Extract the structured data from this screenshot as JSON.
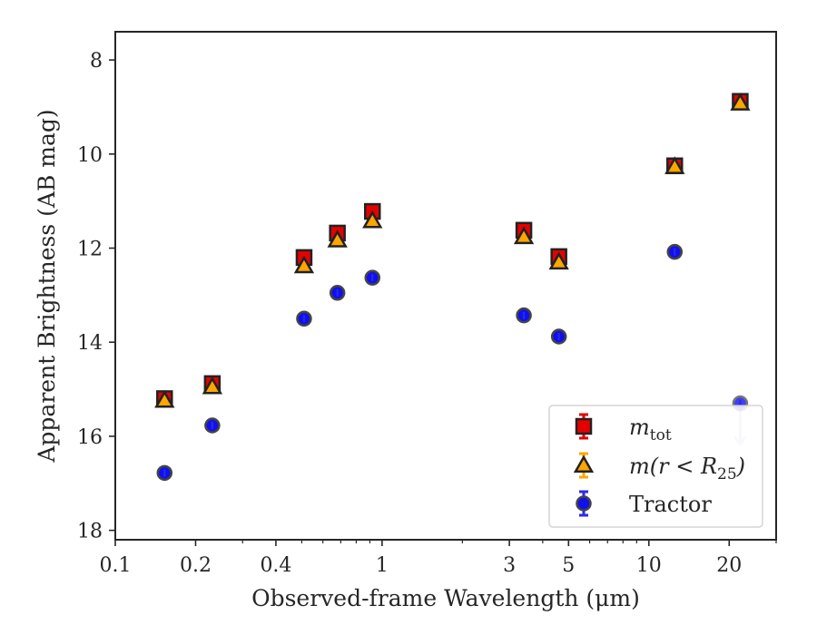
{
  "chart_data": {
    "type": "scatter",
    "xlabel": "Observed-frame Wavelength (μm)",
    "ylabel": "Apparent Brightness (AB mag)",
    "x_scale": "log",
    "y_inverted": true,
    "xlim": [
      0.1,
      30
    ],
    "ylim": [
      18.2,
      7.4
    ],
    "x_ticks": [
      {
        "value": 0.1,
        "label": "0.1"
      },
      {
        "value": 0.2,
        "label": "0.2"
      },
      {
        "value": 0.4,
        "label": "0.4"
      },
      {
        "value": 1,
        "label": "1"
      },
      {
        "value": 3,
        "label": "3"
      },
      {
        "value": 5,
        "label": "5"
      },
      {
        "value": 10,
        "label": "10"
      },
      {
        "value": 20,
        "label": "20"
      }
    ],
    "y_ticks": [
      {
        "value": 8,
        "label": "8"
      },
      {
        "value": 10,
        "label": "10"
      },
      {
        "value": 12,
        "label": "12"
      },
      {
        "value": 14,
        "label": "14"
      },
      {
        "value": 16,
        "label": "16"
      },
      {
        "value": 18,
        "label": "18"
      }
    ],
    "grid": false,
    "legend_position": "lower-right",
    "series": [
      {
        "name": "m_tot",
        "legend_main": "m",
        "legend_sub": "tot",
        "marker": "square",
        "color": "#e50000",
        "error_color": "#e50000",
        "x": [
          0.153,
          0.231,
          0.51,
          0.68,
          0.92,
          3.4,
          4.6,
          12.5,
          22.0
        ],
        "y": [
          15.2,
          14.88,
          12.2,
          11.68,
          11.22,
          11.62,
          12.18,
          10.25,
          8.88
        ],
        "upper_limit": [
          false,
          false,
          false,
          false,
          false,
          false,
          false,
          false,
          false
        ]
      },
      {
        "name": "m(r<R_25)",
        "legend_main": "m(r < R",
        "legend_sub": "25",
        "legend_end": ")",
        "marker": "triangle",
        "color": "#ffa500",
        "error_color": "#ffa500",
        "x": [
          0.153,
          0.231,
          0.51,
          0.68,
          0.92,
          3.4,
          4.6,
          12.5,
          22.0
        ],
        "y": [
          15.24,
          14.95,
          12.38,
          11.83,
          11.42,
          11.76,
          12.3,
          10.27,
          8.92
        ],
        "upper_limit": [
          false,
          false,
          false,
          false,
          false,
          false,
          false,
          false,
          false
        ]
      },
      {
        "name": "Tractor",
        "legend_main": "Tractor",
        "marker": "circle",
        "color": "#1010ee",
        "error_color": "#2a2aee",
        "x": [
          0.153,
          0.231,
          0.51,
          0.68,
          0.92,
          3.4,
          4.6,
          12.5,
          22.0
        ],
        "y": [
          16.78,
          15.77,
          13.5,
          12.95,
          12.63,
          13.43,
          13.88,
          12.08,
          15.3
        ],
        "upper_limit": [
          false,
          false,
          false,
          false,
          false,
          false,
          false,
          false,
          true
        ]
      }
    ]
  }
}
